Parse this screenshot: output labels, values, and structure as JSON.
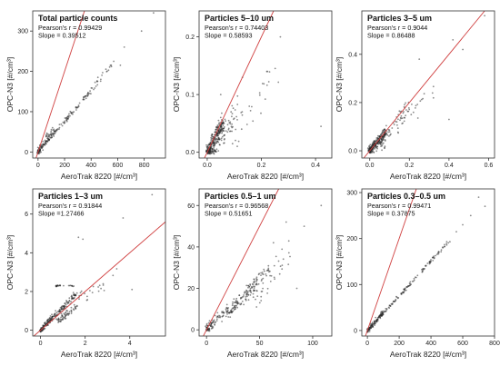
{
  "chart_data": [
    {
      "type": "scatter",
      "title": "Total particle counts",
      "stats": [
        "Pearson's r = 0.99429",
        "Slope = 0.39512"
      ],
      "slope": 0.39512,
      "xlabel": "AeroTrak 8220 [#/cm³]",
      "ylabel": "OPC-N3 [#/cm³]",
      "xlim": [
        -40,
        960
      ],
      "ylim": [
        -15,
        350
      ],
      "xticks": [
        0,
        200,
        400,
        600,
        800
      ],
      "yticks": [
        0,
        100,
        200,
        300
      ],
      "xtick_labels": [
        "0",
        "200",
        "400",
        "600",
        "800"
      ],
      "ytick_labels": [
        "0",
        "100",
        "200",
        "300"
      ],
      "clusters": [
        {
          "x": [
            0,
            420
          ],
          "y": [
            0,
            160
          ],
          "n": 150,
          "noise": 5
        },
        {
          "x": [
            430,
            560
          ],
          "y": [
            165,
            215
          ],
          "n": 20,
          "noise": 8
        },
        {
          "x": [
            0,
            120
          ],
          "y": [
            0,
            60
          ],
          "n": 60,
          "noise": 10
        }
      ],
      "outliers": [
        [
          570,
          225
        ],
        [
          620,
          215
        ],
        [
          650,
          260
        ],
        [
          870,
          345
        ],
        [
          780,
          300
        ]
      ]
    },
    {
      "type": "scatter",
      "title": "Particles 5–10 um",
      "stats": [
        "Pearson's r = 0.74403",
        "Slope = 0.58593"
      ],
      "slope": 0.58593,
      "xlabel": "AeroTrak 8220 [#/cm³]",
      "ylabel": "OPC-N3 [#/cm³]",
      "xlim": [
        -0.03,
        0.46
      ],
      "ylim": [
        -0.01,
        0.245
      ],
      "xticks": [
        0.0,
        0.2,
        0.4
      ],
      "yticks": [
        0.0,
        0.1,
        0.2
      ],
      "xtick_labels": [
        "0.0",
        "0.2",
        "0.4"
      ],
      "ytick_labels": [
        "0.0",
        "0.1",
        "0.2"
      ],
      "clusters": [
        {
          "x": [
            0,
            0.06
          ],
          "y": [
            0,
            0.05
          ],
          "n": 260,
          "noise": 0.012
        },
        {
          "x": [
            0.02,
            0.12
          ],
          "y": [
            0.0,
            0.08
          ],
          "n": 80,
          "noise": 0.02
        },
        {
          "x": [
            0.1,
            0.25
          ],
          "y": [
            0.02,
            0.14
          ],
          "n": 25,
          "noise": 0.03
        }
      ],
      "outliers": [
        [
          0.27,
          0.2
        ],
        [
          0.22,
          0.14
        ],
        [
          0.42,
          0.045
        ],
        [
          0.13,
          0.13
        ],
        [
          0.05,
          0.1
        ]
      ]
    },
    {
      "type": "scatter",
      "title": "Particles 3–5 um",
      "stats": [
        "Pearson's r = 0.9044",
        "Slope = 0.86488"
      ],
      "slope": 0.86488,
      "xlabel": "AeroTrak 8220 [#/cm³]",
      "ylabel": "OPC-N3 [#/cm³]",
      "xlim": [
        -0.04,
        0.63
      ],
      "ylim": [
        -0.03,
        0.58
      ],
      "xticks": [
        0.0,
        0.2,
        0.4,
        0.6
      ],
      "yticks": [
        0.0,
        0.2,
        0.4
      ],
      "xtick_labels": [
        "0.0",
        "0.2",
        "0.4",
        "0.6"
      ],
      "ytick_labels": [
        "0.0",
        "0.2",
        "0.4"
      ],
      "clusters": [
        {
          "x": [
            0,
            0.08
          ],
          "y": [
            0,
            0.08
          ],
          "n": 240,
          "noise": 0.015
        },
        {
          "x": [
            0.05,
            0.2
          ],
          "y": [
            0.03,
            0.18
          ],
          "n": 80,
          "noise": 0.03
        },
        {
          "x": [
            0.2,
            0.35
          ],
          "y": [
            0.15,
            0.3
          ],
          "n": 15,
          "noise": 0.04
        }
      ],
      "outliers": [
        [
          0.42,
          0.46
        ],
        [
          0.47,
          0.42
        ],
        [
          0.58,
          0.56
        ],
        [
          0.25,
          0.38
        ],
        [
          0.4,
          0.13
        ]
      ]
    },
    {
      "type": "scatter",
      "title": "Particles 1–3 um",
      "stats": [
        "Pearson's r = 0.91844",
        "Slope =1.27466"
      ],
      "slope": 1.27466,
      "xlabel": "AeroTrak 8220 [#/cm³]",
      "ylabel": "OPC-N3 [#/cm³]",
      "xlim": [
        -0.35,
        5.6
      ],
      "ylim": [
        -0.3,
        7.3
      ],
      "xticks": [
        0,
        2,
        4
      ],
      "yticks": [
        0,
        2,
        4,
        6
      ],
      "xtick_labels": [
        "0",
        "2",
        "4"
      ],
      "ytick_labels": [
        "0",
        "2",
        "4",
        "6"
      ],
      "clusters": [
        {
          "x": [
            0,
            1.6
          ],
          "y": [
            0,
            1.9
          ],
          "n": 200,
          "noise": 0.12
        },
        {
          "x": [
            0.8,
            1.6
          ],
          "y": [
            0.5,
            1.2
          ],
          "n": 60,
          "noise": 0.15
        },
        {
          "x": [
            0.7,
            1.5
          ],
          "y": [
            2.3,
            2.3
          ],
          "n": 25,
          "noise": 0.04
        },
        {
          "x": [
            1.5,
            3.5
          ],
          "y": [
            1.5,
            3.0
          ],
          "n": 25,
          "noise": 0.35
        }
      ],
      "outliers": [
        [
          5.0,
          7.0
        ],
        [
          3.7,
          5.8
        ],
        [
          1.7,
          4.8
        ],
        [
          1.9,
          4.7
        ],
        [
          4.1,
          2.1
        ]
      ]
    },
    {
      "type": "scatter",
      "title": "Particles 0.5–1 um",
      "stats": [
        "Pearson's r = 0.96568",
        "Slope = 0.51651"
      ],
      "slope": 0.51651,
      "xlabel": "AeroTrak 8220 [#/cm³]",
      "ylabel": "OPC-N3 [#/cm³]",
      "xlim": [
        -7,
        118
      ],
      "ylim": [
        -3,
        68
      ],
      "xticks": [
        0,
        50,
        100
      ],
      "yticks": [
        0,
        20,
        40,
        60
      ],
      "xtick_labels": [
        "0",
        "50",
        "100"
      ],
      "ytick_labels": [
        "0",
        "20",
        "40",
        "60"
      ],
      "clusters": [
        {
          "x": [
            0,
            60
          ],
          "y": [
            0,
            30
          ],
          "n": 170,
          "noise": 2.2
        },
        {
          "x": [
            20,
            45
          ],
          "y": [
            8,
            20
          ],
          "n": 60,
          "noise": 2.5
        },
        {
          "x": [
            45,
            80
          ],
          "y": [
            14,
            38
          ],
          "n": 40,
          "noise": 6
        }
      ],
      "outliers": [
        [
          108,
          60
        ],
        [
          92,
          50
        ],
        [
          75,
          52
        ],
        [
          63,
          42
        ],
        [
          85,
          20
        ]
      ]
    },
    {
      "type": "scatter",
      "title": "Particles 0.3–0.5 um",
      "stats": [
        "Pearson's r = 0.99471",
        "Slope = 0.37875"
      ],
      "slope": 0.37875,
      "xlabel": "AeroTrak 8220 [#/cm³]",
      "ylabel": "OPC-N3 [#/cm³]",
      "xlim": [
        -35,
        800
      ],
      "ylim": [
        -12,
        308
      ],
      "xticks": [
        0,
        200,
        400,
        600,
        800
      ],
      "yticks": [
        0,
        100,
        200,
        300
      ],
      "xtick_labels": [
        "0",
        "200",
        "400",
        "600",
        "800"
      ],
      "ytick_labels": [
        "0",
        "100",
        "200",
        "300"
      ],
      "clusters": [
        {
          "x": [
            0,
            520
          ],
          "y": [
            0,
            197
          ],
          "n": 190,
          "noise": 4
        },
        {
          "x": [
            0,
            100
          ],
          "y": [
            0,
            40
          ],
          "n": 60,
          "noise": 5
        }
      ],
      "outliers": [
        [
          600,
          230
        ],
        [
          700,
          290
        ],
        [
          740,
          270
        ],
        [
          650,
          250
        ],
        [
          560,
          215
        ]
      ]
    }
  ]
}
